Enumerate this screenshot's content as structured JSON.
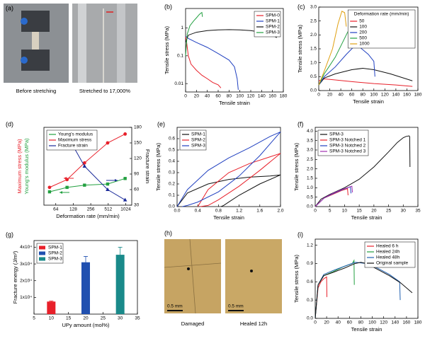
{
  "photos": {
    "a": {
      "label": "(a)",
      "captions": [
        "Before stretching",
        "Stretched to 17,000%"
      ]
    },
    "h": {
      "label": "(h)",
      "captions": [
        "Damaged",
        "Healed 12h"
      ],
      "scale_bar": "0.5 mm"
    }
  },
  "chart_data": [
    {
      "type": "line",
      "label": "(b)",
      "xlabel": "Tensile strain",
      "ylabel": "Tensile stress (MPa)",
      "xlim": [
        0,
        180
      ],
      "xticks": [
        0,
        20,
        40,
        60,
        80,
        100,
        120,
        140,
        160,
        180
      ],
      "ylim": [
        0.005,
        5
      ],
      "ylog": true,
      "yticks": [
        0.01,
        0.1,
        1
      ],
      "legend": "upper right",
      "series": [
        {
          "name": "SPM-0",
          "color": "#e8202a",
          "x": [
            0,
            2,
            5,
            10,
            20,
            30,
            40,
            50,
            60,
            65
          ],
          "values": [
            0.5,
            0.3,
            0.1,
            0.05,
            0.03,
            0.02,
            0.015,
            0.011,
            0.009,
            0.007
          ]
        },
        {
          "name": "SPM-1",
          "color": "#2040c0",
          "x": [
            0,
            5,
            20,
            40,
            60,
            80,
            90,
            95,
            97
          ],
          "values": [
            0.5,
            0.42,
            0.3,
            0.2,
            0.12,
            0.07,
            0.04,
            0.015,
            0.006
          ]
        },
        {
          "name": "SPM-2",
          "color": "#111111",
          "x": [
            0,
            5,
            20,
            40,
            60,
            80,
            100,
            120,
            140,
            160,
            168
          ],
          "values": [
            0.3,
            0.55,
            0.7,
            0.8,
            0.85,
            0.87,
            0.85,
            0.8,
            0.7,
            0.55,
            0.45
          ]
        },
        {
          "name": "SPM-3",
          "color": "#22a040",
          "x": [
            0,
            3,
            8,
            15,
            20,
            25,
            28,
            30,
            31
          ],
          "values": [
            0.1,
            0.6,
            1.2,
            1.8,
            2.3,
            3.0,
            3.4,
            3.6,
            2.5
          ]
        }
      ]
    },
    {
      "type": "line",
      "label": "(c)",
      "xlabel": "Tensile strain",
      "ylabel": "Tensile stress (MPa)",
      "xlim": [
        0,
        180
      ],
      "xticks": [
        0,
        20,
        40,
        60,
        80,
        100,
        120,
        140,
        160,
        180
      ],
      "ylim": [
        0,
        3
      ],
      "yticks": [
        {
          "value": 0,
          "label": "0.0"
        },
        0.5,
        {
          "value": 1,
          "label": "1.0"
        },
        1.5,
        {
          "value": 2,
          "label": "2.0"
        },
        2.5,
        {
          "value": 3,
          "label": "3.0"
        }
      ],
      "legend": "upper right",
      "legend_title": "Deformation rate (mm/min)",
      "series": [
        {
          "name": "50",
          "color": "#e8202a",
          "x": [
            0,
            10,
            30,
            60,
            100,
            140,
            170
          ],
          "values": [
            0.35,
            0.42,
            0.38,
            0.32,
            0.25,
            0.2,
            0.15
          ]
        },
        {
          "name": "100",
          "color": "#111111",
          "x": [
            0,
            10,
            30,
            60,
            80,
            100,
            130,
            170
          ],
          "values": [
            0.2,
            0.45,
            0.6,
            0.75,
            0.8,
            0.75,
            0.6,
            0.35
          ]
        },
        {
          "name": "200",
          "color": "#2040c0",
          "x": [
            0,
            10,
            30,
            50,
            65,
            75,
            90,
            100,
            102
          ],
          "values": [
            0.2,
            0.5,
            0.85,
            1.3,
            1.6,
            1.55,
            1.3,
            1.05,
            0.5
          ]
        },
        {
          "name": "500",
          "color": "#22a040",
          "x": [
            0,
            10,
            30,
            50,
            60,
            67,
            70
          ],
          "values": [
            0.2,
            0.6,
            1.2,
            2.0,
            2.4,
            2.5,
            1.6
          ]
        },
        {
          "name": "1000",
          "color": "#e0a010",
          "x": [
            0,
            10,
            25,
            35,
            42,
            47,
            50
          ],
          "values": [
            0.2,
            0.7,
            1.5,
            2.4,
            2.85,
            2.8,
            2.3
          ]
        }
      ]
    },
    {
      "type": "line",
      "label": "(d)",
      "xlabel": "Deformation rate (mm/min)",
      "ylabel": "Maximum stress (MPa)",
      "ylabel_color": "#e8202a",
      "ylabel2": "Young's modulus (MPa)",
      "ylabel2_color": "#22a040",
      "y2label": "Fracture strain",
      "x": [
        50,
        100,
        200,
        500,
        1000
      ],
      "xlim": [
        40,
        1300
      ],
      "xlog": true,
      "xticks": [
        64,
        128,
        256,
        512,
        1024
      ],
      "ylim": [
        -0.3,
        3.2
      ],
      "y2lim": [
        30,
        180
      ],
      "y2ticks": [
        30,
        60,
        90,
        120,
        150,
        180
      ],
      "legend": "upper left",
      "series": [
        {
          "name": "Young's modulus",
          "color": "#22a040",
          "marker": "square",
          "values": [
            0.3,
            0.5,
            0.6,
            0.65,
            0.9
          ]
        },
        {
          "name": "Maximum stress",
          "color": "#e8202a",
          "marker": "circle",
          "values": [
            0.5,
            0.85,
            1.6,
            2.5,
            2.9
          ]
        },
        {
          "name": "Fracture strain",
          "color": "#1a2a9a",
          "marker": "triangle",
          "axis": "y2",
          "values": [
            165,
            165,
            105,
            60,
            40
          ]
        }
      ]
    },
    {
      "type": "line",
      "label": "(e)",
      "xlabel": "Tensile strain",
      "ylabel": "Tensile stress (MPa)",
      "xlim": [
        0,
        2
      ],
      "xticks": [
        {
          "value": 0,
          "label": "0.0"
        },
        0.4,
        0.8,
        1.2,
        1.6,
        {
          "value": 2,
          "label": "2.0"
        }
      ],
      "ylim": [
        0,
        0.7
      ],
      "yticks": [
        {
          "value": 0,
          "label": "0.0"
        },
        0.1,
        0.2,
        0.3,
        0.4,
        0.5,
        0.6
      ],
      "legend": "upper left",
      "series": [
        {
          "name": "SPM-1",
          "color": "#111111",
          "x": [
            0,
            0.2,
            0.6,
            1.0,
            1.4,
            1.8,
            2.0,
            1.6,
            1.2,
            1.0,
            0.9,
            0.85
          ],
          "values": [
            0,
            0.12,
            0.2,
            0.24,
            0.26,
            0.27,
            0.28,
            0.2,
            0.1,
            0.04,
            0.01,
            0
          ]
        },
        {
          "name": "SPM-2",
          "color": "#e8202a",
          "x": [
            0.4,
            0.6,
            1.0,
            1.4,
            1.8,
            2.0,
            1.6,
            1.2,
            0.8,
            0.6,
            0.45
          ],
          "values": [
            0,
            0.15,
            0.3,
            0.38,
            0.44,
            0.47,
            0.32,
            0.18,
            0.06,
            0.01,
            0
          ]
        },
        {
          "name": "SPM-3",
          "color": "#2040c0",
          "x": [
            0,
            0.2,
            0.6,
            1.0,
            1.4,
            1.8,
            2.0,
            1.6,
            1.2,
            0.8,
            0.4,
            0.2,
            0.1
          ],
          "values": [
            0,
            0.15,
            0.32,
            0.43,
            0.52,
            0.62,
            0.66,
            0.45,
            0.27,
            0.13,
            0.04,
            0.01,
            0
          ]
        }
      ]
    },
    {
      "type": "line",
      "label": "(f)",
      "xlabel": "Tensile strain",
      "ylabel": "Tensile stress (MPa)",
      "xlim": [
        0,
        35
      ],
      "xticks": [
        0,
        5,
        10,
        15,
        20,
        25,
        30,
        35
      ],
      "ylim": [
        0,
        4.2
      ],
      "yticks": [
        {
          "value": 0,
          "label": "0.0"
        },
        0.5,
        {
          "value": 1,
          "label": "1.0"
        },
        1.5,
        {
          "value": 2,
          "label": "2.0"
        },
        2.5,
        {
          "value": 3,
          "label": "3.0"
        },
        3.5,
        {
          "value": 4,
          "label": "4.0"
        }
      ],
      "legend": "upper left",
      "series": [
        {
          "name": "SPM-3",
          "color": "#111111",
          "x": [
            0,
            2,
            5,
            10,
            15,
            20,
            25,
            28,
            30,
            31,
            32,
            32.2,
            32.3
          ],
          "values": [
            0,
            0.4,
            0.65,
            1.0,
            1.45,
            2.1,
            2.9,
            3.4,
            3.65,
            3.72,
            3.75,
            3.7,
            2.1
          ]
        },
        {
          "name": "SPM-3 Notched 1",
          "color": "#e8202a",
          "x": [
            0,
            3,
            6,
            9,
            11,
            11.2
          ],
          "values": [
            0,
            0.45,
            0.65,
            0.85,
            0.95,
            0.6
          ]
        },
        {
          "name": "SPM-3 Notched 2",
          "color": "#2040c0",
          "x": [
            0,
            3,
            6,
            9,
            12,
            12.2
          ],
          "values": [
            0,
            0.45,
            0.68,
            0.88,
            1.05,
            0.7
          ]
        },
        {
          "name": "SPM-3 Notched 3",
          "color": "#a030b0",
          "x": [
            0,
            3,
            6,
            9,
            12.5,
            12.7
          ],
          "values": [
            0,
            0.45,
            0.7,
            0.9,
            1.08,
            0.75
          ]
        }
      ]
    },
    {
      "type": "bar",
      "label": "(g)",
      "xlabel": "UPy amount (mol%)",
      "ylabel": "Fracture energy (J/m³)",
      "xlim": [
        5,
        35
      ],
      "xticks": [
        5,
        10,
        15,
        20,
        25,
        30,
        35
      ],
      "ylim": [
        0,
        44000
      ],
      "yticks": [
        {
          "value": 10000,
          "label": "1x10⁴"
        },
        {
          "value": 20000,
          "label": "2x10⁴"
        },
        {
          "value": 30000,
          "label": "3x10⁴"
        },
        {
          "value": 40000,
          "label": "4x10⁴"
        }
      ],
      "legend": "upper left",
      "series": [
        {
          "name": "SPM-1",
          "color": "#e8202a",
          "x": [
            10
          ],
          "values": [
            7500
          ],
          "errors": [
            300
          ]
        },
        {
          "name": "SPM-2",
          "color": "#2050b0",
          "x": [
            20
          ],
          "values": [
            31000
          ],
          "errors": [
            3500
          ]
        },
        {
          "name": "SPM-3",
          "color": "#1a8a8a",
          "x": [
            30
          ],
          "values": [
            35500
          ],
          "errors": [
            4500
          ]
        }
      ]
    },
    {
      "type": "line",
      "label": "(i)",
      "xlabel": "Tensile strain",
      "ylabel": "Tensile stress (MPa)",
      "xlim": [
        0,
        180
      ],
      "xticks": [
        0,
        20,
        40,
        60,
        80,
        100,
        120,
        140,
        160,
        180
      ],
      "ylim": [
        0,
        1.3
      ],
      "yticks": [
        {
          "value": 0,
          "label": "0.0"
        },
        0.3,
        0.6,
        0.9,
        1.2
      ],
      "legend": "upper right",
      "series": [
        {
          "name": "Healed 6 h",
          "color": "#e8202a",
          "x": [
            0,
            5,
            10,
            15,
            20,
            20.5
          ],
          "values": [
            0,
            0.5,
            0.6,
            0.65,
            0.68,
            0.35
          ]
        },
        {
          "name": "Healed 24h",
          "color": "#22a040",
          "x": [
            0,
            5,
            15,
            30,
            50,
            65,
            68,
            68.5
          ],
          "values": [
            0,
            0.55,
            0.7,
            0.76,
            0.85,
            0.9,
            0.95,
            0.55
          ]
        },
        {
          "name": "Healed 48h",
          "color": "#2060b0",
          "x": [
            0,
            5,
            15,
            30,
            50,
            70,
            90,
            110,
            130,
            148,
            149
          ],
          "values": [
            0,
            0.55,
            0.72,
            0.78,
            0.85,
            0.92,
            0.9,
            0.82,
            0.72,
            0.6,
            0.3
          ]
        },
        {
          "name": "Original sample",
          "color": "#111111",
          "x": [
            0,
            5,
            15,
            30,
            50,
            70,
            80,
            90,
            110,
            130,
            150,
            170
          ],
          "values": [
            0,
            0.55,
            0.7,
            0.75,
            0.82,
            0.9,
            0.92,
            0.9,
            0.8,
            0.7,
            0.58,
            0.42
          ]
        }
      ]
    }
  ]
}
